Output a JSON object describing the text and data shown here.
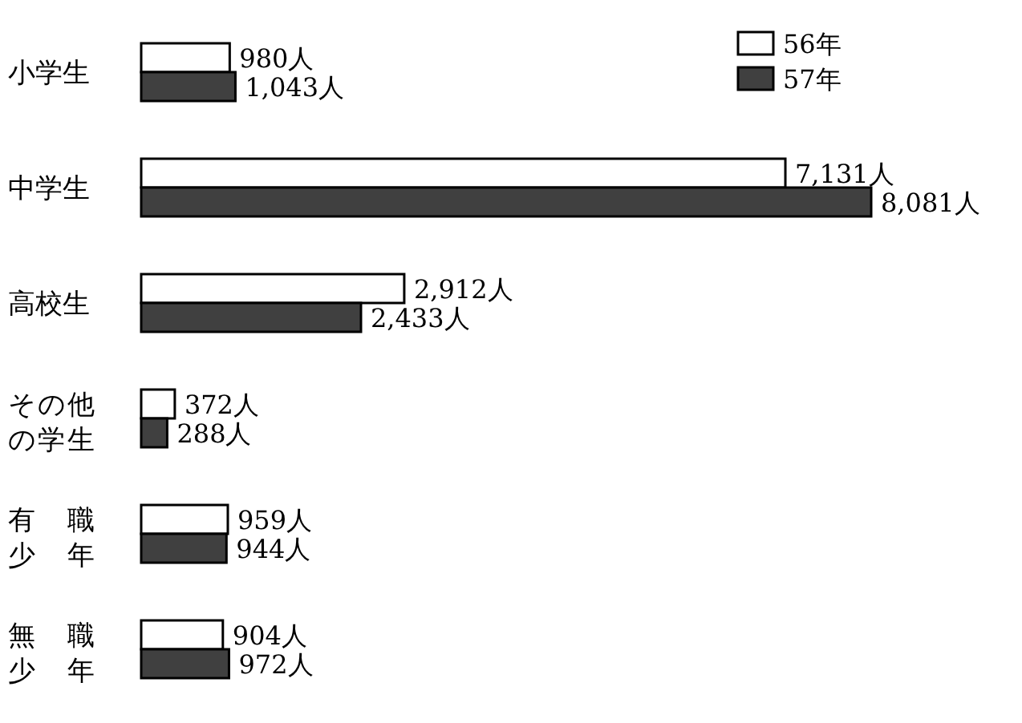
{
  "chart_data": {
    "type": "bar",
    "orientation": "horizontal",
    "categories": [
      "小学生",
      "中学生",
      "高校生",
      "その他の学生",
      "有職少年",
      "無職少年"
    ],
    "series": [
      {
        "name": "56年",
        "color": "#ffffff",
        "values": [
          980,
          7131,
          2912,
          372,
          959,
          904
        ],
        "value_labels": [
          "980人",
          "7,131人",
          "2,912人",
          "372人",
          "959人",
          "904人"
        ]
      },
      {
        "name": "57年",
        "color": "#404040",
        "values": [
          1043,
          8081,
          2433,
          288,
          944,
          972
        ],
        "value_labels": [
          "1,043人",
          "8,081人",
          "2,433人",
          "288人",
          "944人",
          "972人"
        ]
      }
    ],
    "legend": "top right",
    "grid": false
  }
}
